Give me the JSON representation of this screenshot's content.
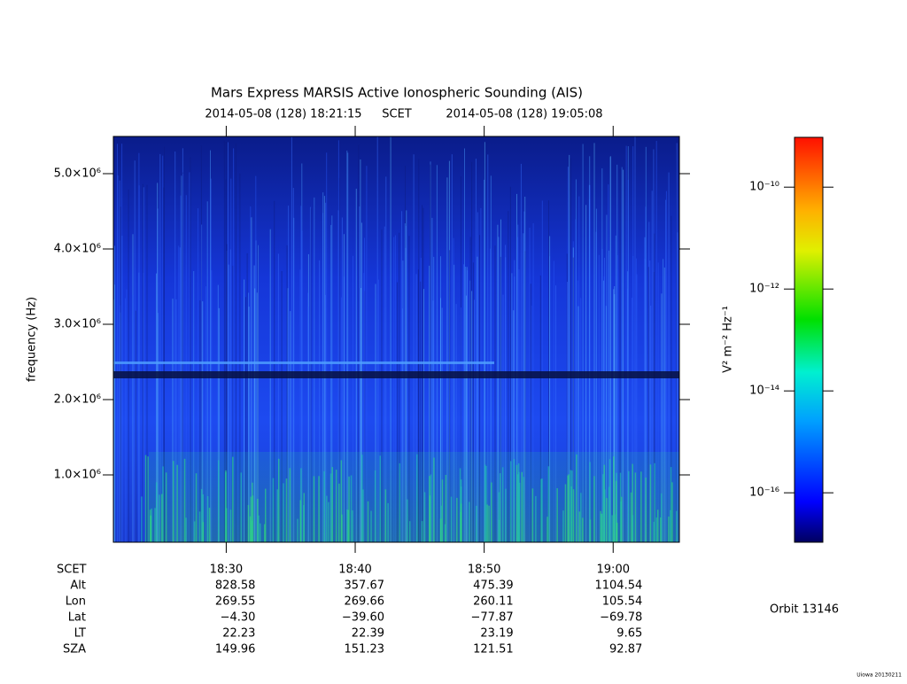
{
  "chart_data": {
    "type": "spectrogram",
    "title": "Mars Express MARSIS Active Ionospheric Sounding (AIS)",
    "start": "2014-05-08 (128) 18:21:15",
    "time_label": "SCET",
    "end": "2014-05-08 (128) 19:05:08",
    "ylabel": "frequency (Hz)",
    "ylim": [
      106000,
      5494000
    ],
    "yticks": [
      {
        "value": 1000000,
        "label": "1.0×10⁶"
      },
      {
        "value": 2000000,
        "label": "2.0×10⁶"
      },
      {
        "value": 3000000,
        "label": "3.0×10⁶"
      },
      {
        "value": 4000000,
        "label": "4.0×10⁶"
      },
      {
        "value": 5000000,
        "label": "5.0×10⁶"
      }
    ],
    "xticks": [
      "18:30",
      "18:40",
      "18:50",
      "19:00"
    ],
    "colorbar": {
      "label": "V² m⁻² Hz⁻¹",
      "log": true,
      "clim": [
        1.07e-17,
        9.5e-10
      ],
      "ticks": [
        {
          "value": 1e-10,
          "label": "10⁻¹⁰"
        },
        {
          "value": 1e-12,
          "label": "10⁻¹²"
        },
        {
          "value": 1e-14,
          "label": "10⁻¹⁴"
        },
        {
          "value": 1e-16,
          "label": "10⁻¹⁶"
        }
      ]
    },
    "ephemeris": {
      "header": "SCET",
      "rows": [
        [
          "Alt",
          "828.58",
          "357.67",
          "475.39",
          "1104.54"
        ],
        [
          "Lon",
          "269.55",
          "269.66",
          "260.11",
          "105.54"
        ],
        [
          "Lat",
          "−4.30",
          "−39.60",
          "−77.87",
          "−69.78"
        ],
        [
          "LT",
          "22.23",
          "22.39",
          "23.19",
          "9.65"
        ],
        [
          "SZA",
          "149.96",
          "151.23",
          "121.51",
          "92.87"
        ]
      ]
    },
    "orbit": "Orbit 13146",
    "footer": "Uiowa 20130211"
  }
}
